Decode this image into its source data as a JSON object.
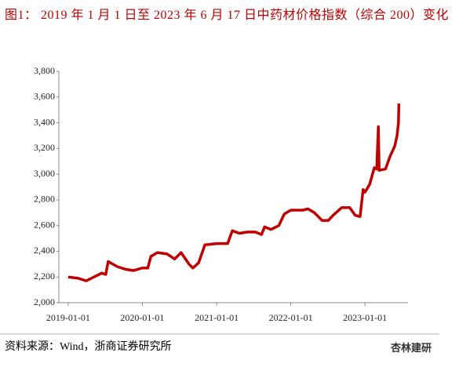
{
  "chart_data": {
    "type": "line",
    "title": "图1：  2019 年 1 月 1 日至 2023 年 6 月 17 日中药材价格指数（综合 200）变化",
    "source": "资料来源：Wind，浙商证券研究所",
    "watermark": "杏林建研",
    "x": [
      "2019-01-01",
      "2019-02-20",
      "2019-03-30",
      "2019-05-08",
      "2019-06-15",
      "2019-07-05",
      "2019-07-17",
      "2019-09-01",
      "2019-10-10",
      "2019-11-18",
      "2020-01-01",
      "2020-01-28",
      "2020-02-12",
      "2020-03-15",
      "2020-05-01",
      "2020-06-08",
      "2020-07-10",
      "2020-08-18",
      "2020-09-06",
      "2020-10-04",
      "2020-11-04",
      "2021-01-01",
      "2021-02-24",
      "2021-03-19",
      "2021-04-23",
      "2021-06-01",
      "2021-07-10",
      "2021-08-10",
      "2021-08-25",
      "2021-09-25",
      "2021-11-03",
      "2021-11-30",
      "2022-01-01",
      "2022-02-28",
      "2022-03-27",
      "2022-04-27",
      "2022-06-04",
      "2022-07-05",
      "2022-07-28",
      "2022-09-09",
      "2022-10-18",
      "2022-11-14",
      "2022-12-08",
      "2022-12-23",
      "2023-01-01",
      "2023-01-24",
      "2023-02-16",
      "2023-02-28",
      "2023-03-08",
      "2023-03-12",
      "2023-04-12",
      "2023-05-05",
      "2023-05-28",
      "2023-06-08",
      "2023-06-15",
      "2023-06-17"
    ],
    "series": [
      {
        "color": "#c00000",
        "values": [
          2200,
          2190,
          2170,
          2200,
          2230,
          2220,
          2320,
          2280,
          2260,
          2250,
          2270,
          2270,
          2360,
          2390,
          2380,
          2340,
          2390,
          2300,
          2270,
          2310,
          2450,
          2460,
          2460,
          2560,
          2540,
          2550,
          2550,
          2530,
          2590,
          2570,
          2600,
          2690,
          2720,
          2720,
          2730,
          2700,
          2640,
          2640,
          2680,
          2740,
          2740,
          2680,
          2670,
          2880,
          2860,
          2920,
          3050,
          3040,
          3370,
          3030,
          3040,
          3140,
          3220,
          3300,
          3400,
          3550
        ]
      }
    ],
    "xlim": [
      "2018-11-16",
      "2023-08-01"
    ],
    "xticks": [
      "2019-01-01",
      "2020-01-01",
      "2021-01-01",
      "2022-01-01",
      "2023-01-01"
    ],
    "ylim": [
      2000,
      3800
    ],
    "yticks": [
      {
        "value": 2000,
        "label": "2,000"
      },
      {
        "value": 2200,
        "label": "2,200"
      },
      {
        "value": 2400,
        "label": "2,400"
      },
      {
        "value": 2600,
        "label": "2,600"
      },
      {
        "value": 2800,
        "label": "2,800"
      },
      {
        "value": 3000,
        "label": "3,000"
      },
      {
        "value": 3200,
        "label": "3,200"
      },
      {
        "value": 3400,
        "label": "3,400"
      },
      {
        "value": 3600,
        "label": "3,600"
      },
      {
        "value": 3800,
        "label": "3,800"
      }
    ],
    "grid": false
  }
}
